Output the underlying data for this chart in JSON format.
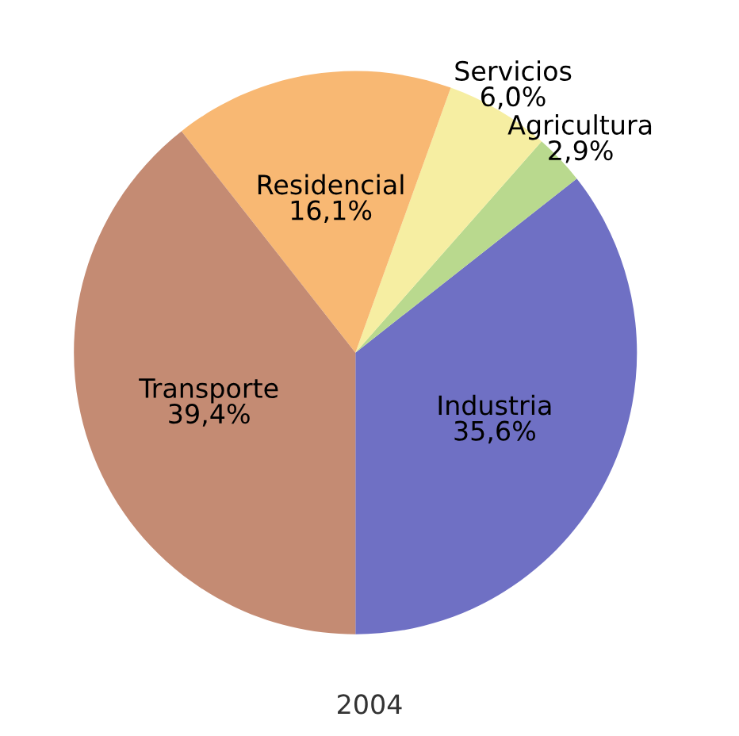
{
  "chart_data": {
    "type": "pie",
    "title": "2004",
    "categories": [
      "Industria",
      "Agricultura",
      "Servicios",
      "Residencial",
      "Transporte"
    ],
    "values": [
      35.6,
      2.9,
      6.0,
      16.1,
      39.4
    ],
    "value_labels": [
      "35,6%",
      "2,9%",
      "6,0%",
      "16,1%",
      "39,4%"
    ],
    "colors": [
      "#6f70c4",
      "#b9d98e",
      "#f6eea2",
      "#f8b873",
      "#c48b73"
    ],
    "legend": false
  }
}
